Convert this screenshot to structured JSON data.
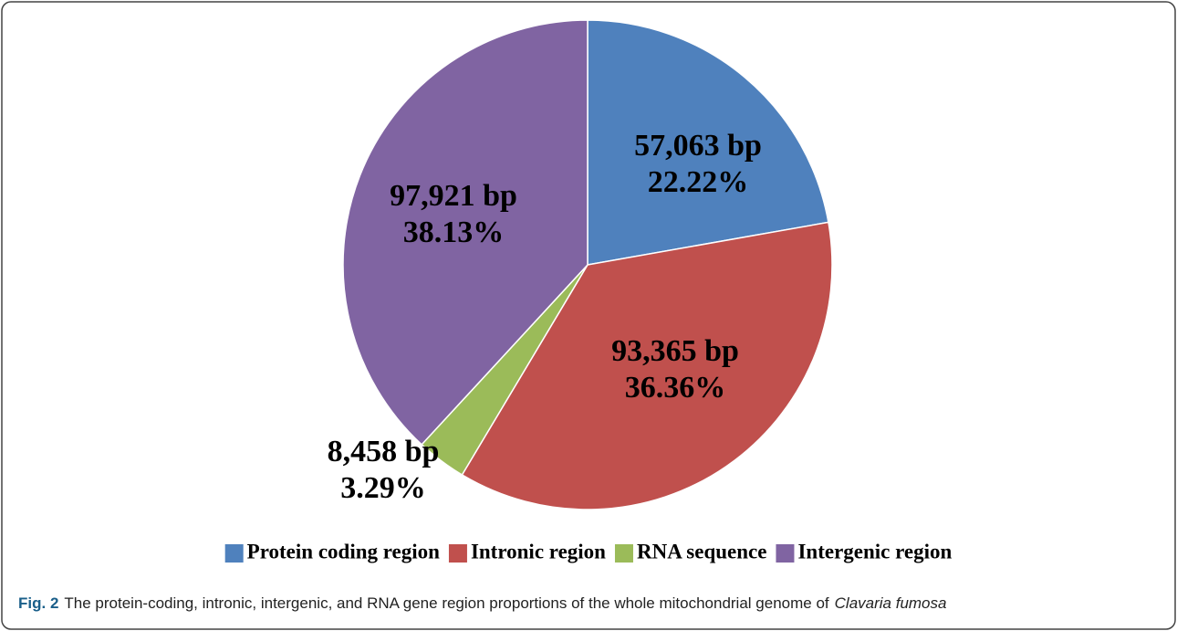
{
  "chart_data": {
    "type": "pie",
    "categories": [
      "Protein coding region",
      "Intronic region",
      "RNA sequence",
      "Intergenic region"
    ],
    "values": [
      22.22,
      36.36,
      3.29,
      38.13
    ],
    "value_labels": [
      "22.22%",
      "36.36%",
      "3.29%",
      "38.13%"
    ],
    "sizes": [
      57063,
      93365,
      8458,
      97921
    ],
    "size_labels": [
      "57,063 bp",
      "93,365 bp",
      "8,458 bp",
      "97,921 bp"
    ],
    "colors": [
      "#4f81bd",
      "#c0504d",
      "#9bbb59",
      "#8064a2"
    ],
    "legend": "bottom"
  },
  "caption": {
    "label": "Fig. 2",
    "text": "The protein-coding, intronic, intergenic, and RNA gene region proportions of the whole mitochondrial genome of",
    "species": "Clavaria fumosa"
  }
}
